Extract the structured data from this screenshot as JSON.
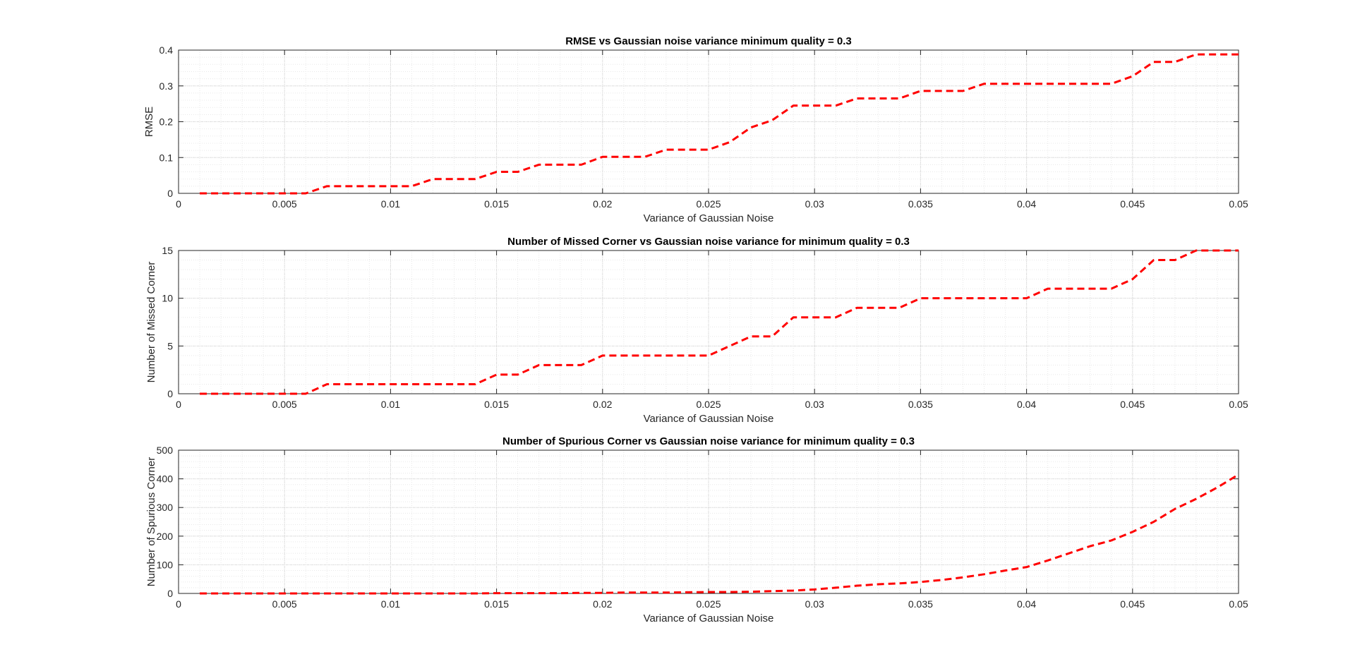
{
  "line_color": "#ff0000",
  "chart_data": [
    {
      "type": "line",
      "title": "RMSE vs Gaussian noise variance minimum quality = 0.3",
      "xlabel": "Variance of Gaussian Noise",
      "ylabel": "RMSE",
      "xlim": [
        0,
        0.05
      ],
      "ylim": [
        0,
        0.4
      ],
      "xticks": [
        0,
        0.005,
        0.01,
        0.015,
        0.02,
        0.025,
        0.03,
        0.035,
        0.04,
        0.045,
        0.05
      ],
      "xtick_labels": [
        "0",
        "0.005",
        "0.01",
        "0.015",
        "0.02",
        "0.025",
        "0.03",
        "0.035",
        "0.04",
        "0.045",
        "0.05"
      ],
      "yticks": [
        0,
        0.1,
        0.2,
        0.3,
        0.4
      ],
      "ytick_labels": [
        "0",
        "0.1",
        "0.2",
        "0.3",
        "0.4"
      ],
      "grid": true,
      "minor_grid": true,
      "line_style": "dashed",
      "x": [
        0.001,
        0.002,
        0.003,
        0.004,
        0.005,
        0.006,
        0.007,
        0.008,
        0.009,
        0.01,
        0.011,
        0.012,
        0.013,
        0.014,
        0.015,
        0.016,
        0.017,
        0.018,
        0.019,
        0.02,
        0.021,
        0.022,
        0.023,
        0.024,
        0.025,
        0.026,
        0.027,
        0.028,
        0.029,
        0.03,
        0.031,
        0.032,
        0.033,
        0.034,
        0.035,
        0.036,
        0.037,
        0.038,
        0.039,
        0.04,
        0.041,
        0.042,
        0.043,
        0.044,
        0.045,
        0.046,
        0.047,
        0.048,
        0.049,
        0.05
      ],
      "y": [
        0,
        0,
        0,
        0,
        0,
        0,
        0.02,
        0.02,
        0.02,
        0.02,
        0.02,
        0.04,
        0.04,
        0.04,
        0.06,
        0.06,
        0.08,
        0.08,
        0.08,
        0.102,
        0.102,
        0.102,
        0.122,
        0.122,
        0.122,
        0.143,
        0.184,
        0.204,
        0.245,
        0.245,
        0.245,
        0.265,
        0.265,
        0.265,
        0.286,
        0.286,
        0.286,
        0.306,
        0.306,
        0.306,
        0.306,
        0.306,
        0.306,
        0.306,
        0.327,
        0.367,
        0.367,
        0.388,
        0.388,
        0.388
      ]
    },
    {
      "type": "line",
      "title": "Number of Missed Corner vs Gaussian noise variance for minimum quality = 0.3",
      "xlabel": "Variance of Gaussian Noise",
      "ylabel": "Number of Missed Corner",
      "xlim": [
        0,
        0.05
      ],
      "ylim": [
        0,
        15
      ],
      "xticks": [
        0,
        0.005,
        0.01,
        0.015,
        0.02,
        0.025,
        0.03,
        0.035,
        0.04,
        0.045,
        0.05
      ],
      "xtick_labels": [
        "0",
        "0.005",
        "0.01",
        "0.015",
        "0.02",
        "0.025",
        "0.03",
        "0.035",
        "0.04",
        "0.045",
        "0.05"
      ],
      "yticks": [
        0,
        5,
        10,
        15
      ],
      "ytick_labels": [
        "0",
        "5",
        "10",
        "15"
      ],
      "grid": true,
      "minor_grid": true,
      "line_style": "dashed",
      "x": [
        0.001,
        0.002,
        0.003,
        0.004,
        0.005,
        0.006,
        0.007,
        0.008,
        0.009,
        0.01,
        0.011,
        0.012,
        0.013,
        0.014,
        0.015,
        0.016,
        0.017,
        0.018,
        0.019,
        0.02,
        0.021,
        0.022,
        0.023,
        0.024,
        0.025,
        0.026,
        0.027,
        0.028,
        0.029,
        0.03,
        0.031,
        0.032,
        0.033,
        0.034,
        0.035,
        0.036,
        0.037,
        0.038,
        0.039,
        0.04,
        0.041,
        0.042,
        0.043,
        0.044,
        0.045,
        0.046,
        0.047,
        0.048,
        0.049,
        0.05
      ],
      "y": [
        0,
        0,
        0,
        0,
        0,
        0,
        1,
        1,
        1,
        1,
        1,
        1,
        1,
        1,
        2,
        2,
        3,
        3,
        3,
        4,
        4,
        4,
        4,
        4,
        4,
        5,
        6,
        6,
        8,
        8,
        8,
        9,
        9,
        9,
        10,
        10,
        10,
        10,
        10,
        10,
        11,
        11,
        11,
        11,
        12,
        14,
        14,
        15,
        15,
        15
      ]
    },
    {
      "type": "line",
      "title": "Number of Spurious Corner vs Gaussian noise variance for minimum quality = 0.3",
      "xlabel": "Variance of Gaussian Noise",
      "ylabel": "Number of Spurious Corner",
      "xlim": [
        0,
        0.05
      ],
      "ylim": [
        0,
        500
      ],
      "xticks": [
        0,
        0.005,
        0.01,
        0.015,
        0.02,
        0.025,
        0.03,
        0.035,
        0.04,
        0.045,
        0.05
      ],
      "xtick_labels": [
        "0",
        "0.005",
        "0.01",
        "0.015",
        "0.02",
        "0.025",
        "0.03",
        "0.035",
        "0.04",
        "0.045",
        "0.05"
      ],
      "yticks": [
        0,
        100,
        200,
        300,
        400,
        500
      ],
      "ytick_labels": [
        "0",
        "100",
        "200",
        "300",
        "400",
        "500"
      ],
      "grid": true,
      "minor_grid": true,
      "line_style": "dashed",
      "x": [
        0.001,
        0.002,
        0.003,
        0.004,
        0.005,
        0.006,
        0.007,
        0.008,
        0.009,
        0.01,
        0.011,
        0.012,
        0.013,
        0.014,
        0.015,
        0.016,
        0.017,
        0.018,
        0.019,
        0.02,
        0.021,
        0.022,
        0.023,
        0.024,
        0.025,
        0.026,
        0.027,
        0.028,
        0.029,
        0.03,
        0.031,
        0.032,
        0.033,
        0.034,
        0.035,
        0.036,
        0.037,
        0.038,
        0.039,
        0.04,
        0.041,
        0.042,
        0.043,
        0.044,
        0.045,
        0.046,
        0.047,
        0.048,
        0.049,
        0.05
      ],
      "y": [
        0,
        0,
        0,
        0,
        0,
        0,
        0,
        0,
        0,
        0,
        0,
        0,
        0,
        0,
        1,
        1,
        1,
        1,
        2,
        2,
        3,
        3,
        3,
        4,
        5,
        5,
        6,
        8,
        10,
        14,
        20,
        27,
        32,
        35,
        40,
        47,
        56,
        67,
        80,
        92,
        115,
        140,
        165,
        185,
        215,
        250,
        295,
        330,
        370,
        415
      ]
    }
  ]
}
